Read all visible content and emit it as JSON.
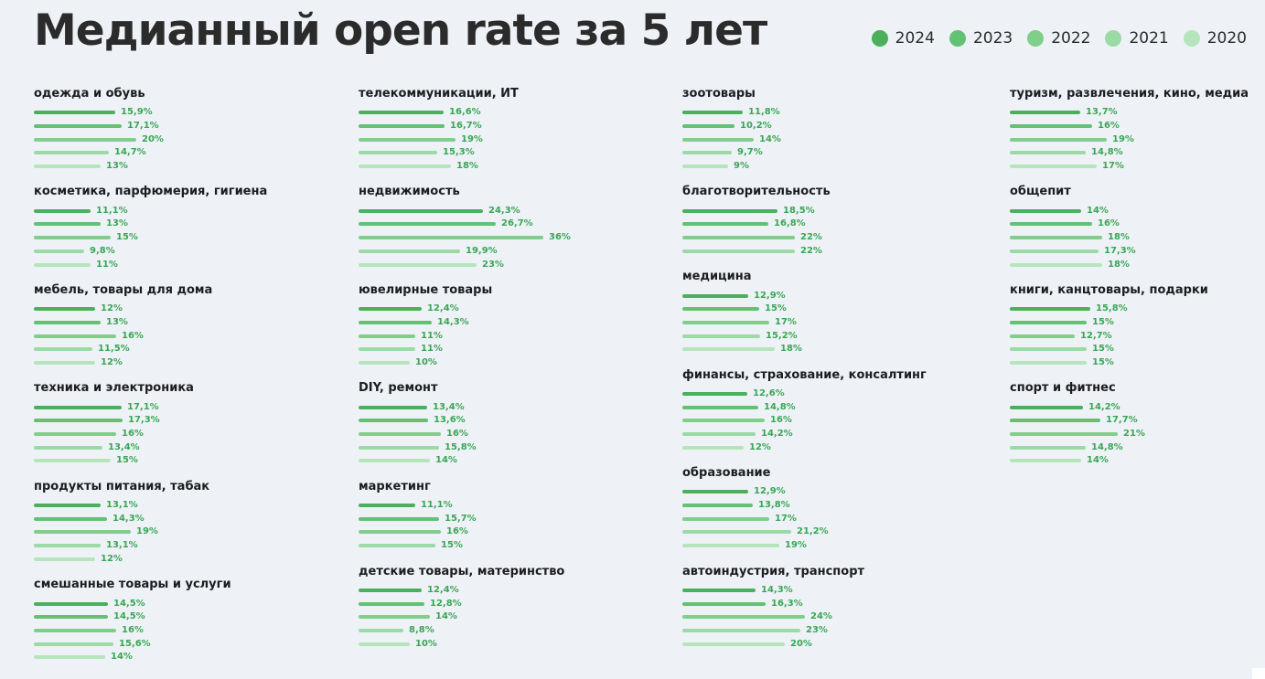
{
  "title": "Медианный open rate за 5 лет",
  "legend": [
    {
      "label": "2024",
      "color": "#4caf5c"
    },
    {
      "label": "2023",
      "color": "#62c172"
    },
    {
      "label": "2022",
      "color": "#7fcf8b"
    },
    {
      "label": "2021",
      "color": "#9bdaa4"
    },
    {
      "label": "2020",
      "color": "#b6e5bc"
    }
  ],
  "chart_data": {
    "type": "bar",
    "orientation": "horizontal",
    "title": "Медианный open rate за 5 лет",
    "series_names": [
      "2024",
      "2023",
      "2022",
      "2021",
      "2020"
    ],
    "unit": "%",
    "columns": [
      [
        {
          "name": "одежда и обувь",
          "values": [
            15.9,
            17.1,
            20,
            14.7,
            13
          ],
          "labels": [
            "15,9%",
            "17,1%",
            "20%",
            "14,7%",
            "13%"
          ]
        },
        {
          "name": "косметика, парфюмерия, гигиена",
          "values": [
            11.1,
            13,
            15,
            9.8,
            11
          ],
          "labels": [
            "11,1%",
            "13%",
            "15%",
            "9,8%",
            "11%"
          ]
        },
        {
          "name": "мебель, товары для дома",
          "values": [
            12,
            13,
            16,
            11.5,
            12
          ],
          "labels": [
            "12%",
            "13%",
            "16%",
            "11,5%",
            "12%"
          ]
        },
        {
          "name": "техника и электроника",
          "values": [
            17.1,
            17.3,
            16,
            13.4,
            15
          ],
          "labels": [
            "17,1%",
            "17,3%",
            "16%",
            "13,4%",
            "15%"
          ]
        },
        {
          "name": "продукты питания, табак",
          "values": [
            13.1,
            14.3,
            19,
            13.1,
            12
          ],
          "labels": [
            "13,1%",
            "14,3%",
            "19%",
            "13,1%",
            "12%"
          ]
        },
        {
          "name": "смешанные товары и услуги",
          "values": [
            14.5,
            14.5,
            16,
            15.6,
            14
          ],
          "labels": [
            "14,5%",
            "14,5%",
            "16%",
            "15,6%",
            "14%"
          ]
        }
      ],
      [
        {
          "name": "телекоммуникации, ИТ",
          "values": [
            16.6,
            16.7,
            19,
            15.3,
            18
          ],
          "labels": [
            "16,6%",
            "16,7%",
            "19%",
            "15,3%",
            "18%"
          ]
        },
        {
          "name": "недвижимость",
          "values": [
            24.3,
            26.7,
            36,
            19.9,
            23
          ],
          "labels": [
            "24,3%",
            "26,7%",
            "36%",
            "19,9%",
            "23%"
          ]
        },
        {
          "name": "ювелирные товары",
          "values": [
            12.4,
            14.3,
            11,
            11,
            10
          ],
          "labels": [
            "12,4%",
            "14,3%",
            "11%",
            "11%",
            "10%"
          ]
        },
        {
          "name": "DIY, ремонт",
          "values": [
            13.4,
            13.6,
            16,
            15.8,
            14
          ],
          "labels": [
            "13,4%",
            "13,6%",
            "16%",
            "15,8%",
            "14%"
          ]
        },
        {
          "name": "маркетинг",
          "values": [
            11.1,
            15.7,
            16,
            15
          ],
          "labels": [
            "11,1%",
            "15,7%",
            "16%",
            "15%"
          ]
        },
        {
          "name": "детские товары, материнство",
          "values": [
            12.4,
            12.8,
            14,
            8.8,
            10
          ],
          "labels": [
            "12,4%",
            "12,8%",
            "14%",
            "8,8%",
            "10%"
          ]
        }
      ],
      [
        {
          "name": "зоотовары",
          "values": [
            11.8,
            10.2,
            14,
            9.7,
            9
          ],
          "labels": [
            "11,8%",
            "10,2%",
            "14%",
            "9,7%",
            "9%"
          ]
        },
        {
          "name": "благотворительность",
          "values": [
            18.5,
            16.8,
            22,
            22
          ],
          "labels": [
            "18,5%",
            "16,8%",
            "22%",
            "22%"
          ]
        },
        {
          "name": "медицина",
          "values": [
            12.9,
            15,
            17,
            15.2,
            18
          ],
          "labels": [
            "12,9%",
            "15%",
            "17%",
            "15,2%",
            "18%"
          ]
        },
        {
          "name": "финансы, страхование, консалтинг",
          "values": [
            12.6,
            14.8,
            16,
            14.2,
            12
          ],
          "labels": [
            "12,6%",
            "14,8%",
            "16%",
            "14,2%",
            "12%"
          ]
        },
        {
          "name": "образование",
          "values": [
            12.9,
            13.8,
            17,
            21.2,
            19
          ],
          "labels": [
            "12,9%",
            "13,8%",
            "17%",
            "21,2%",
            "19%"
          ]
        },
        {
          "name": "автоиндустрия, транспорт",
          "values": [
            14.3,
            16.3,
            24,
            23,
            20
          ],
          "labels": [
            "14,3%",
            "16,3%",
            "24%",
            "23%",
            "20%"
          ]
        }
      ],
      [
        {
          "name": "туризм, развлечения, кино, медиа",
          "values": [
            13.7,
            16,
            19,
            14.8,
            17
          ],
          "labels": [
            "13,7%",
            "16%",
            "19%",
            "14,8%",
            "17%"
          ]
        },
        {
          "name": "общепит",
          "values": [
            14,
            16,
            18,
            17.3,
            18
          ],
          "labels": [
            "14%",
            "16%",
            "18%",
            "17,3%",
            "18%"
          ]
        },
        {
          "name": "книги, канцтовары, подарки",
          "values": [
            15.8,
            15,
            12.7,
            15,
            15
          ],
          "labels": [
            "15,8%",
            "15%",
            "12,7%",
            "15%",
            "15%"
          ]
        },
        {
          "name": "спорт и фитнес",
          "values": [
            14.2,
            17.7,
            21,
            14.8,
            14
          ],
          "labels": [
            "14,2%",
            "17,7%",
            "21%",
            "14,8%",
            "14%"
          ]
        }
      ]
    ]
  }
}
